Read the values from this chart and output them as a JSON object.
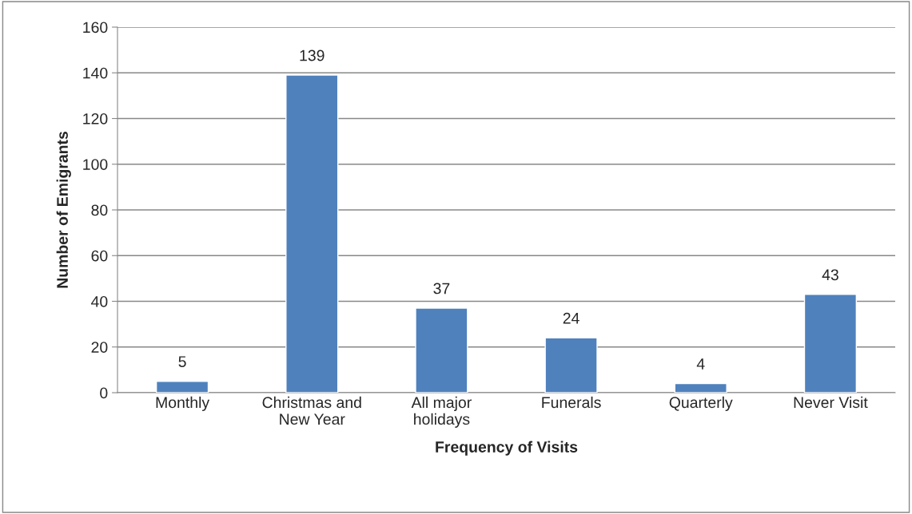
{
  "chart_data": {
    "type": "bar",
    "xlabel": "Frequency of Visits",
    "ylabel": "Number of Emigrants",
    "categories": [
      "Monthly",
      "Christmas and\nNew Year",
      "All major\nholidays",
      "Funerals",
      "Quarterly",
      "Never Visit"
    ],
    "values": [
      5,
      139,
      37,
      24,
      4,
      43
    ],
    "color": "#4f81bd",
    "ylim": [
      0,
      160
    ],
    "yticks": [
      0,
      20,
      40,
      60,
      80,
      100,
      120,
      140,
      160
    ],
    "grid": "y",
    "data_labels": true,
    "legend": false
  }
}
